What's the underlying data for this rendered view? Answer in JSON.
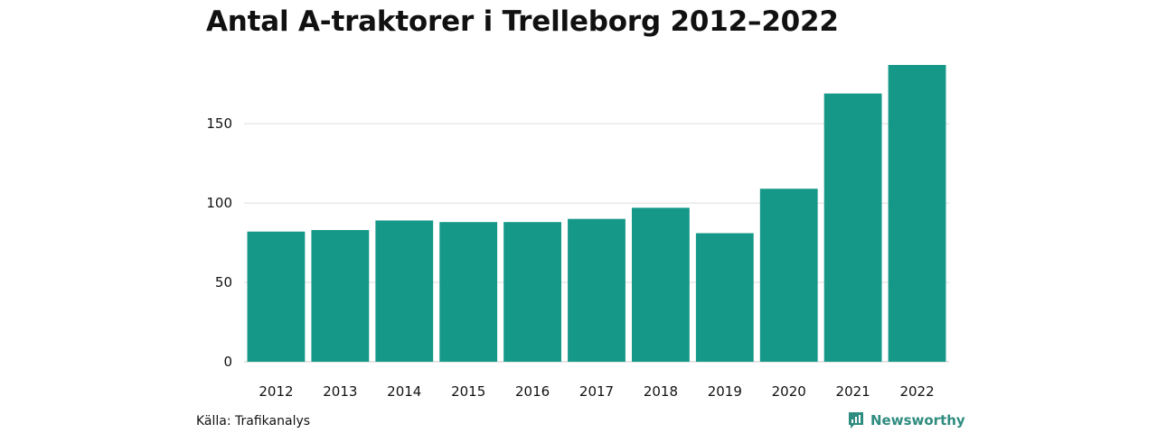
{
  "header": {
    "title": "Antal A-traktorer i Trelleborg 2012–2022"
  },
  "footer": {
    "source": "Källa: Trafikanalys",
    "brand": "Newsworthy",
    "brand_icon": "newsworthy-logo-icon"
  },
  "colors": {
    "bar": "#159888",
    "grid": "#dcdcdc",
    "axis": "#c8c8c8",
    "brand": "#2f8c80"
  },
  "chart_data": {
    "type": "bar",
    "title": "Antal A-traktorer i Trelleborg 2012–2022",
    "xlabel": "",
    "ylabel": "",
    "categories": [
      "2012",
      "2013",
      "2014",
      "2015",
      "2016",
      "2017",
      "2018",
      "2019",
      "2020",
      "2021",
      "2022"
    ],
    "values": [
      82,
      83,
      89,
      88,
      88,
      90,
      97,
      81,
      109,
      169,
      187
    ],
    "ylim": [
      0,
      187
    ],
    "yticks": [
      0,
      50,
      100,
      150
    ],
    "grid": true,
    "legend": "none"
  }
}
